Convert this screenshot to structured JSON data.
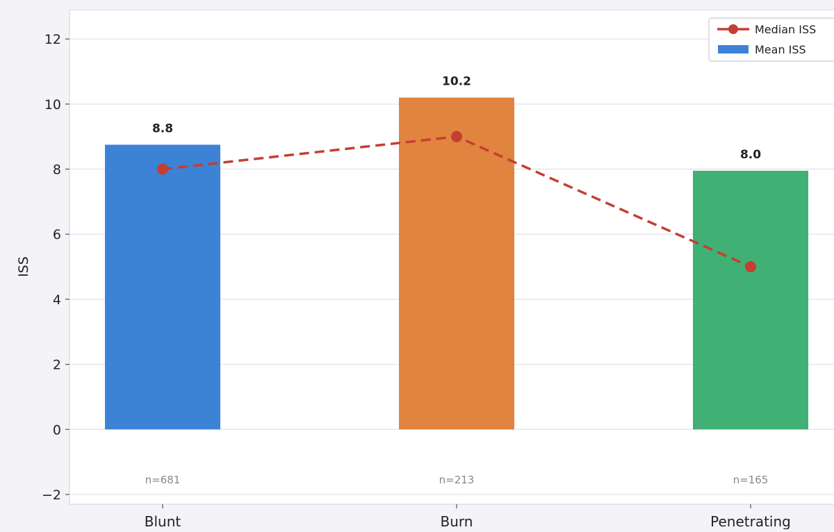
{
  "chart_data": {
    "type": "bar",
    "title": "",
    "xlabel": "",
    "ylabel": "ISS",
    "categories": [
      "Blunt",
      "Burn",
      "Penetrating"
    ],
    "ylim": [
      -2.3,
      12.9
    ],
    "yticks": [
      -2,
      0,
      2,
      4,
      6,
      8,
      10,
      12
    ],
    "grid": true,
    "legend_position": "top-right",
    "series": [
      {
        "name": "Mean ISS",
        "kind": "bar",
        "values": [
          8.75,
          10.2,
          7.95
        ],
        "labels": [
          "8.8",
          "10.2",
          "8.0"
        ],
        "colors": [
          "#3c83d6",
          "#e0843f",
          "#41b075"
        ]
      },
      {
        "name": "Median ISS",
        "kind": "line",
        "style": "dashed",
        "marker": "circle",
        "color": "#c43e32",
        "values": [
          8,
          9,
          5
        ]
      }
    ],
    "annotations": [
      "n=681",
      "n=213",
      "n=165"
    ]
  },
  "colors": {
    "background": "#f4f4f8",
    "plot_background": "#ffffff",
    "grid": "#e6e6ec",
    "axis": "#d0d0d8",
    "text": "#222222",
    "annotation": "#888888"
  }
}
